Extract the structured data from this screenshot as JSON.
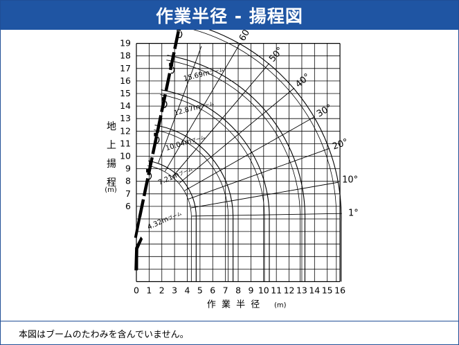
{
  "header": {
    "title": "作業半径 - 揚程図"
  },
  "footnote": "本図はブームのたわみを含んでいません。",
  "colors": {
    "header_bg": "#1f55a3",
    "line": "#000000"
  },
  "chart_data": {
    "type": "line",
    "title": "作業半径 - 揚程図",
    "xlabel": "作 業 半 径",
    "xlabel_unit": "(m)",
    "ylabel": "地上揚程",
    "ylabel_chars": [
      "地",
      "上",
      "揚",
      "程"
    ],
    "ylabel_unit": "(m)",
    "xlim": [
      0,
      16
    ],
    "ylim": [
      0,
      19
    ],
    "x_ticks": [
      "0",
      "1",
      "2",
      "3",
      "4",
      "5",
      "6",
      "7",
      "8",
      "9",
      "10",
      "11",
      "12",
      "13",
      "14",
      "15",
      "16"
    ],
    "y_ticks": [
      "6",
      "7",
      "8",
      "9",
      "10",
      "11",
      "12",
      "13",
      "14",
      "15",
      "16",
      "17",
      "18",
      "19"
    ],
    "grid": true,
    "boom_foot": [
      0.15,
      5.15
    ],
    "booms": [
      {
        "name": "4.32mブーム",
        "length_label": "4.32m",
        "suffix": "ブーム"
      },
      {
        "name": "7.21mブーム",
        "length_label": "7.21m",
        "suffix": "ブーム"
      },
      {
        "name": "10.04mブーム",
        "length_label": "10.04m",
        "suffix": "ブーム"
      },
      {
        "name": "12.87mブーム",
        "length_label": "12.87m",
        "suffix": "ブーム"
      },
      {
        "name": "15.69mブーム",
        "length_label": "15.69m",
        "suffix": "ブーム"
      }
    ],
    "angle_lines": [
      {
        "label": "1°",
        "deg": 1
      },
      {
        "label": "10°",
        "deg": 10
      },
      {
        "label": "20°",
        "deg": 20
      },
      {
        "label": "30°",
        "deg": 30
      },
      {
        "label": "40°",
        "deg": 40
      },
      {
        "label": "50°",
        "deg": 50
      },
      {
        "label": "60°",
        "deg": 60
      },
      {
        "label": "70°",
        "deg": 70
      },
      {
        "label": "78°",
        "deg": 78
      }
    ]
  }
}
